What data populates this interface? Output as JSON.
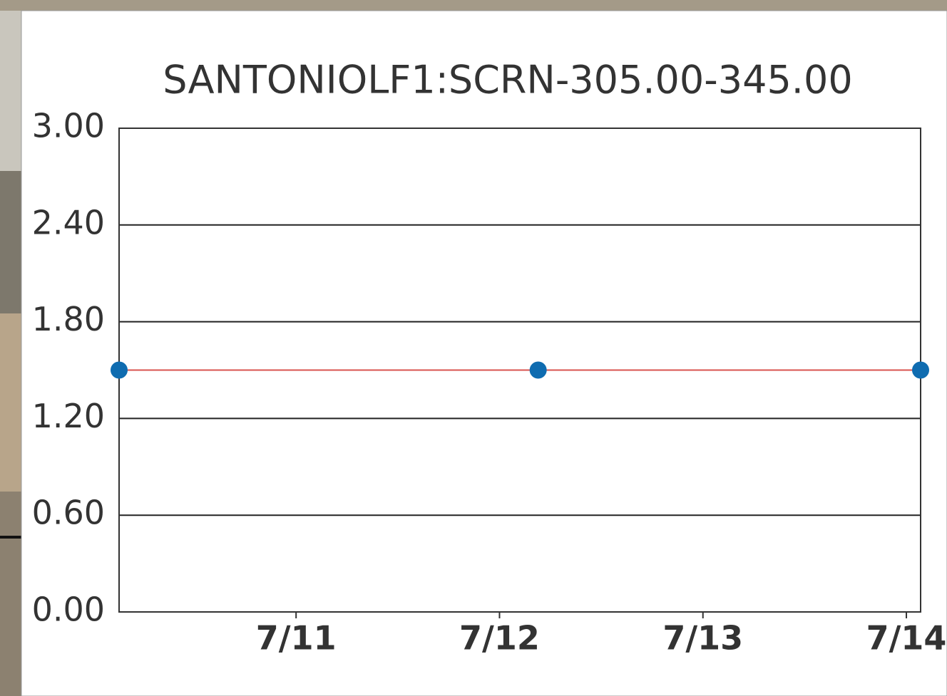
{
  "chart_data": {
    "type": "line",
    "title": "SANTONIOLF1:SCRN-305.00-345.00",
    "x": [
      10.13,
      12.19,
      14.07
    ],
    "series": [
      {
        "values": [
          1.5,
          1.5,
          1.5
        ],
        "color": "#d9534f",
        "marker_color": "#0f6cb0"
      }
    ],
    "xlim": [
      10.13,
      14.07
    ],
    "xticks": [
      {
        "value": 11,
        "label": "7/11"
      },
      {
        "value": 12,
        "label": "7/12"
      },
      {
        "value": 13,
        "label": "7/13"
      },
      {
        "value": 14,
        "label": "7/14"
      }
    ],
    "ylim": [
      0,
      3
    ],
    "yticks": [
      {
        "value": 0,
        "label": "0.00"
      },
      {
        "value": 0.6,
        "label": "0.60"
      },
      {
        "value": 1.2,
        "label": "1.20"
      },
      {
        "value": 1.8,
        "label": "1.80"
      },
      {
        "value": 2.4,
        "label": "2.40"
      },
      {
        "value": 3,
        "label": "3.00"
      }
    ],
    "grid": true
  }
}
